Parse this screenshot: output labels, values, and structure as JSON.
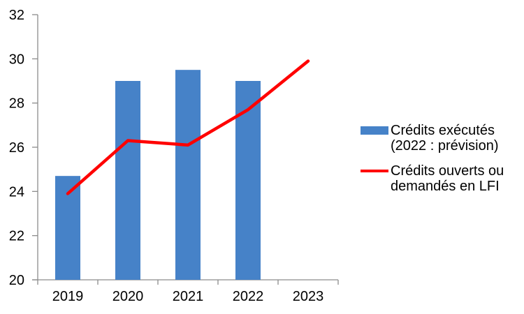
{
  "chart_data": {
    "type": "bar+line",
    "title": "",
    "xlabel": "",
    "ylabel": "",
    "categories": [
      "2019",
      "2020",
      "2021",
      "2022",
      "2023"
    ],
    "series": [
      {
        "name": "Crédits exécutés (2022 : prévision)",
        "type": "bar",
        "color": "#4682C8",
        "values": [
          24.7,
          29.0,
          29.5,
          29.0,
          null
        ]
      },
      {
        "name": "Crédits ouverts ou demandés en LFI",
        "type": "line",
        "color": "#FF0000",
        "values": [
          23.9,
          26.3,
          26.1,
          27.7,
          29.9
        ]
      }
    ],
    "ylim": [
      20,
      32
    ],
    "yticks": [
      20,
      22,
      24,
      26,
      28,
      30,
      32
    ],
    "grid": false,
    "legend_position": "right",
    "axis_color": "#8C8C8C",
    "label_color": "#000000"
  },
  "legend": {
    "entries": [
      {
        "label": "Crédits exécutés (2022 : prévision)",
        "color": "#4682C8"
      },
      {
        "label": "Crédits ouverts ou demandés en LFI",
        "color": "#FF0000"
      }
    ]
  }
}
